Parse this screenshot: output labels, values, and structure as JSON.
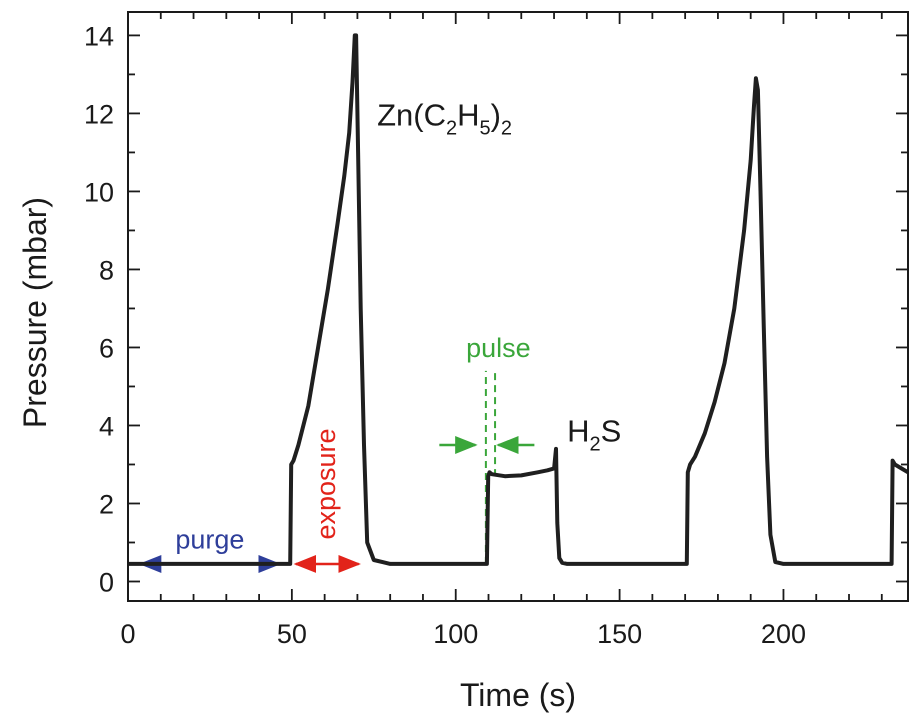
{
  "chart_data": {
    "type": "line",
    "xlabel": "Time (s)",
    "ylabel": "Pressure (mbar)",
    "xlim": [
      0,
      238
    ],
    "ylim": [
      -0.5,
      14.6
    ],
    "xticks": [
      0,
      50,
      100,
      150,
      200
    ],
    "yticks": [
      0,
      2,
      4,
      6,
      8,
      10,
      12,
      14
    ],
    "grid": false,
    "series": [
      {
        "color": "#1f1f1f",
        "x": [
          0,
          49.5,
          49.8,
          50.5,
          52,
          55,
          58,
          61,
          64,
          66,
          67.5,
          68.5,
          69.2,
          69.6,
          70.2,
          71,
          72,
          73,
          75,
          80,
          109.5,
          109.9,
          110.3,
          111,
          115,
          120,
          125,
          128,
          130,
          130.6,
          131.0,
          131.6,
          132.5,
          134,
          140,
          170.5,
          170.8,
          171.5,
          173,
          176,
          179,
          182,
          185,
          188,
          190,
          191,
          191.6,
          192.2,
          193,
          194,
          195,
          196,
          197.5,
          200,
          233,
          233.3,
          234,
          236,
          238
        ],
        "y": [
          0.45,
          0.45,
          3.0,
          3.1,
          3.5,
          4.5,
          6.0,
          7.5,
          9.2,
          10.4,
          11.5,
          12.8,
          14.0,
          14.0,
          11.0,
          7.0,
          3.5,
          1.0,
          0.55,
          0.45,
          0.45,
          2.7,
          2.8,
          2.75,
          2.7,
          2.72,
          2.8,
          2.85,
          2.9,
          3.4,
          1.5,
          0.6,
          0.48,
          0.45,
          0.45,
          0.45,
          2.8,
          3.0,
          3.2,
          3.8,
          4.6,
          5.6,
          7.0,
          9.0,
          10.8,
          12.2,
          12.9,
          12.6,
          10.0,
          6.5,
          3.2,
          1.2,
          0.5,
          0.45,
          0.45,
          3.1,
          3.0,
          2.9,
          2.8
        ]
      }
    ],
    "annotations": [
      {
        "text": "purge",
        "color": "#2e3e9a",
        "arrow": {
          "type": "double",
          "from": 4,
          "to": 46,
          "y": 0.45
        },
        "x": 25,
        "y": 1.05
      },
      {
        "text": "exposure",
        "color": "#e2231a",
        "rotation": -90,
        "arrow": {
          "type": "double",
          "from": 50,
          "to": 71,
          "y": 0.45
        },
        "x": 61,
        "y": 2.5
      },
      {
        "text": "pulse",
        "color": "#3aa63a",
        "arrow": {
          "type": "inward",
          "left_from": 95,
          "left_to": 106,
          "right_from": 124,
          "right_to": 113,
          "y": 3.5
        },
        "x": 113,
        "y": 5.75,
        "dashes": [
          109.2,
          112
        ]
      },
      {
        "main": "Zn(C",
        "sub1": "2",
        "mid": "H",
        "sub2": "5",
        "close": ")",
        "sub3": "2",
        "x": 76,
        "y": 12
      },
      {
        "main": "H",
        "sub1": "2",
        "close": "S",
        "x": 134,
        "y": 3.9
      }
    ]
  }
}
